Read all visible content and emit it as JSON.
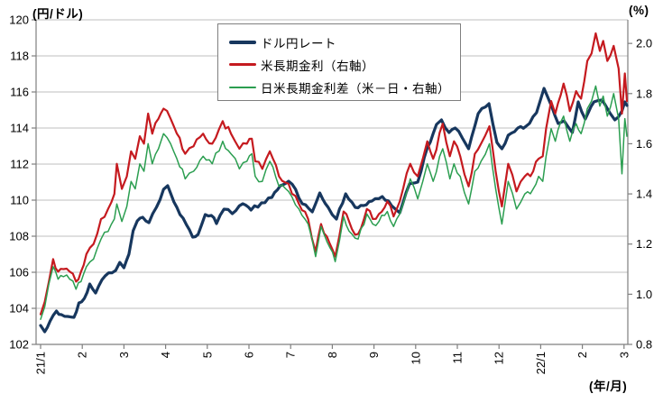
{
  "page_background": "#ffffff",
  "axis_color": "#7f7f7f",
  "grid_color": "#bfbfbf",
  "text_color": "#000000",
  "labels": {
    "left_axis_unit": "(円/ドル)",
    "right_axis_unit": "(%)",
    "x_axis_unit": "(年/月)"
  },
  "chart_data": {
    "type": "line",
    "title": "",
    "grid": "horizontal",
    "legend_position": "top-center",
    "x_axis": {
      "label": "(年/月)",
      "tick_labels": [
        "21/1",
        "2",
        "3",
        "4",
        "5",
        "6",
        "7",
        "8",
        "9",
        "10",
        "11",
        "12",
        "22/1",
        "2",
        "3"
      ],
      "range_months": [
        0,
        14.07
      ]
    },
    "y_left": {
      "label": "(円/ドル)",
      "min": 102,
      "max": 120,
      "step": 2,
      "tick_labels": [
        "120",
        "118",
        "116",
        "114",
        "112",
        "110",
        "108",
        "106",
        "104",
        "102"
      ]
    },
    "y_right": {
      "label": "(%)",
      "min": 0.8,
      "max": 2.094,
      "step": 0.2,
      "tick_labels": [
        "2.0",
        "1.8",
        "1.6",
        "1.4",
        "1.2",
        "1.0",
        "0.8"
      ]
    },
    "series": [
      {
        "name": "ドル円レート",
        "axis": "left",
        "color": "#17375e",
        "width": 3.2,
        "points": [
          [
            0,
            103.05
          ],
          [
            0.1,
            102.7
          ],
          [
            0.23,
            103.3
          ],
          [
            0.38,
            103.85
          ],
          [
            0.5,
            103.65
          ],
          [
            0.65,
            103.55
          ],
          [
            0.8,
            103.5
          ],
          [
            0.92,
            104.3
          ],
          [
            1.05,
            104.55
          ],
          [
            1.18,
            105.35
          ],
          [
            1.32,
            104.85
          ],
          [
            1.55,
            105.8
          ],
          [
            1.8,
            106.1
          ],
          [
            1.9,
            106.55
          ],
          [
            2,
            106.25
          ],
          [
            2.12,
            107
          ],
          [
            2.22,
            108.3
          ],
          [
            2.32,
            108.85
          ],
          [
            2.45,
            109.05
          ],
          [
            2.6,
            108.75
          ],
          [
            2.78,
            109.6
          ],
          [
            2.95,
            110.6
          ],
          [
            3.05,
            110.8
          ],
          [
            3.2,
            109.9
          ],
          [
            3.42,
            109
          ],
          [
            3.65,
            107.95
          ],
          [
            3.78,
            108.1
          ],
          [
            3.95,
            109.2
          ],
          [
            4.1,
            109.15
          ],
          [
            4.22,
            108.7
          ],
          [
            4.4,
            109.5
          ],
          [
            4.6,
            109.25
          ],
          [
            4.85,
            109.8
          ],
          [
            5.05,
            109.45
          ],
          [
            5.3,
            109.85
          ],
          [
            5.55,
            110.15
          ],
          [
            5.75,
            110.8
          ],
          [
            5.95,
            111.05
          ],
          [
            6.12,
            110.6
          ],
          [
            6.28,
            109.8
          ],
          [
            6.52,
            109.35
          ],
          [
            6.7,
            110.4
          ],
          [
            6.9,
            109.6
          ],
          [
            7.1,
            108.95
          ],
          [
            7.32,
            110.35
          ],
          [
            7.55,
            109.6
          ],
          [
            7.75,
            109.7
          ],
          [
            7.95,
            109.95
          ],
          [
            8.2,
            110.2
          ],
          [
            8.42,
            109.7
          ],
          [
            8.62,
            109.3
          ],
          [
            8.85,
            110.9
          ],
          [
            9.05,
            111
          ],
          [
            9.28,
            112.9
          ],
          [
            9.5,
            114.2
          ],
          [
            9.62,
            114.45
          ],
          [
            9.8,
            113.75
          ],
          [
            9.95,
            114
          ],
          [
            10.12,
            113.45
          ],
          [
            10.27,
            112.85
          ],
          [
            10.5,
            114.8
          ],
          [
            10.76,
            115.35
          ],
          [
            10.95,
            113.2
          ],
          [
            11.07,
            112.85
          ],
          [
            11.22,
            113.6
          ],
          [
            11.45,
            114
          ],
          [
            11.65,
            114.1
          ],
          [
            11.9,
            114.85
          ],
          [
            12.08,
            116.2
          ],
          [
            12.2,
            115.55
          ],
          [
            12.42,
            114.25
          ],
          [
            12.56,
            114.4
          ],
          [
            12.76,
            113.75
          ],
          [
            12.9,
            115.45
          ],
          [
            13.07,
            114.5
          ],
          [
            13.28,
            115.45
          ],
          [
            13.46,
            115.55
          ],
          [
            13.67,
            114.8
          ],
          [
            13.78,
            114.45
          ],
          [
            13.95,
            114.95
          ],
          [
            14.02,
            115.45
          ],
          [
            14.07,
            115.25
          ]
        ]
      },
      {
        "name": "米長期金利（右軸）",
        "axis": "right",
        "color": "#c51a1f",
        "width": 2.2,
        "points": [
          [
            0,
            0.92
          ],
          [
            0.1,
            0.97
          ],
          [
            0.3,
            1.14
          ],
          [
            0.42,
            1.09
          ],
          [
            0.55,
            1.1
          ],
          [
            0.7,
            1.09
          ],
          [
            0.85,
            1.05
          ],
          [
            0.97,
            1.09
          ],
          [
            1.1,
            1.16
          ],
          [
            1.27,
            1.2
          ],
          [
            1.45,
            1.3
          ],
          [
            1.62,
            1.34
          ],
          [
            1.77,
            1.4
          ],
          [
            1.83,
            1.52
          ],
          [
            1.95,
            1.42
          ],
          [
            2.07,
            1.47
          ],
          [
            2.17,
            1.57
          ],
          [
            2.27,
            1.54
          ],
          [
            2.38,
            1.63
          ],
          [
            2.48,
            1.6
          ],
          [
            2.58,
            1.72
          ],
          [
            2.68,
            1.64
          ],
          [
            2.83,
            1.7
          ],
          [
            2.95,
            1.74
          ],
          [
            3.12,
            1.7
          ],
          [
            3.27,
            1.64
          ],
          [
            3.47,
            1.56
          ],
          [
            3.67,
            1.59
          ],
          [
            3.9,
            1.64
          ],
          [
            4.12,
            1.6
          ],
          [
            4.37,
            1.69
          ],
          [
            4.57,
            1.64
          ],
          [
            4.77,
            1.58
          ],
          [
            4.95,
            1.6
          ],
          [
            5.07,
            1.62
          ],
          [
            5.15,
            1.53
          ],
          [
            5.32,
            1.5
          ],
          [
            5.5,
            1.57
          ],
          [
            5.72,
            1.47
          ],
          [
            5.95,
            1.44
          ],
          [
            6.2,
            1.36
          ],
          [
            6.42,
            1.3
          ],
          [
            6.6,
            1.17
          ],
          [
            6.73,
            1.28
          ],
          [
            6.87,
            1.23
          ],
          [
            7.07,
            1.15
          ],
          [
            7.27,
            1.33
          ],
          [
            7.47,
            1.26
          ],
          [
            7.62,
            1.24
          ],
          [
            7.83,
            1.34
          ],
          [
            7.97,
            1.3
          ],
          [
            8.12,
            1.32
          ],
          [
            8.32,
            1.37
          ],
          [
            8.47,
            1.31
          ],
          [
            8.62,
            1.37
          ],
          [
            8.87,
            1.52
          ],
          [
            9.05,
            1.47
          ],
          [
            9.17,
            1.54
          ],
          [
            9.28,
            1.61
          ],
          [
            9.42,
            1.54
          ],
          [
            9.65,
            1.68
          ],
          [
            9.82,
            1.55
          ],
          [
            9.92,
            1.61
          ],
          [
            10.07,
            1.55
          ],
          [
            10.27,
            1.43
          ],
          [
            10.42,
            1.56
          ],
          [
            10.57,
            1.6
          ],
          [
            10.77,
            1.67
          ],
          [
            10.92,
            1.49
          ],
          [
            11.07,
            1.35
          ],
          [
            11.22,
            1.52
          ],
          [
            11.42,
            1.41
          ],
          [
            11.62,
            1.47
          ],
          [
            11.82,
            1.49
          ],
          [
            11.95,
            1.54
          ],
          [
            12.05,
            1.55
          ],
          [
            12.13,
            1.66
          ],
          [
            12.25,
            1.77
          ],
          [
            12.35,
            1.72
          ],
          [
            12.55,
            1.84
          ],
          [
            12.7,
            1.73
          ],
          [
            12.85,
            1.81
          ],
          [
            12.97,
            1.78
          ],
          [
            13.12,
            1.93
          ],
          [
            13.22,
            1.96
          ],
          [
            13.32,
            2.04
          ],
          [
            13.42,
            1.97
          ],
          [
            13.5,
            2.01
          ],
          [
            13.6,
            1.93
          ],
          [
            13.75,
            1.99
          ],
          [
            13.87,
            1.9
          ],
          [
            13.95,
            1.72
          ],
          [
            14.02,
            1.88
          ],
          [
            14.07,
            1.77
          ]
        ]
      },
      {
        "name": "日米長期金利差（米－日・右軸）",
        "axis": "right",
        "color": "#2b9e50",
        "width": 1.5,
        "points": [
          [
            0,
            0.9
          ],
          [
            0.1,
            0.95
          ],
          [
            0.3,
            1.11
          ],
          [
            0.42,
            1.06
          ],
          [
            0.55,
            1.07
          ],
          [
            0.7,
            1.06
          ],
          [
            0.85,
            1.02
          ],
          [
            0.97,
            1.05
          ],
          [
            1.1,
            1.11
          ],
          [
            1.27,
            1.14
          ],
          [
            1.45,
            1.22
          ],
          [
            1.62,
            1.25
          ],
          [
            1.77,
            1.3
          ],
          [
            1.83,
            1.36
          ],
          [
            1.95,
            1.29
          ],
          [
            2.07,
            1.35
          ],
          [
            2.17,
            1.45
          ],
          [
            2.27,
            1.42
          ],
          [
            2.38,
            1.52
          ],
          [
            2.48,
            1.49
          ],
          [
            2.58,
            1.6
          ],
          [
            2.68,
            1.52
          ],
          [
            2.83,
            1.58
          ],
          [
            2.95,
            1.64
          ],
          [
            3.12,
            1.6
          ],
          [
            3.27,
            1.54
          ],
          [
            3.47,
            1.46
          ],
          [
            3.67,
            1.49
          ],
          [
            3.9,
            1.55
          ],
          [
            4.12,
            1.52
          ],
          [
            4.37,
            1.61
          ],
          [
            4.57,
            1.56
          ],
          [
            4.77,
            1.5
          ],
          [
            4.95,
            1.53
          ],
          [
            5.07,
            1.56
          ],
          [
            5.15,
            1.47
          ],
          [
            5.32,
            1.45
          ],
          [
            5.5,
            1.53
          ],
          [
            5.72,
            1.43
          ],
          [
            5.95,
            1.41
          ],
          [
            6.2,
            1.34
          ],
          [
            6.42,
            1.28
          ],
          [
            6.6,
            1.15
          ],
          [
            6.73,
            1.27
          ],
          [
            6.87,
            1.21
          ],
          [
            7.07,
            1.13
          ],
          [
            7.27,
            1.31
          ],
          [
            7.47,
            1.24
          ],
          [
            7.62,
            1.22
          ],
          [
            7.83,
            1.32
          ],
          [
            7.97,
            1.28
          ],
          [
            8.12,
            1.29
          ],
          [
            8.32,
            1.33
          ],
          [
            8.47,
            1.27
          ],
          [
            8.62,
            1.32
          ],
          [
            8.87,
            1.46
          ],
          [
            9.05,
            1.38
          ],
          [
            9.17,
            1.45
          ],
          [
            9.28,
            1.52
          ],
          [
            9.42,
            1.45
          ],
          [
            9.65,
            1.58
          ],
          [
            9.82,
            1.46
          ],
          [
            9.92,
            1.52
          ],
          [
            10.07,
            1.47
          ],
          [
            10.27,
            1.36
          ],
          [
            10.42,
            1.49
          ],
          [
            10.57,
            1.53
          ],
          [
            10.77,
            1.6
          ],
          [
            10.92,
            1.42
          ],
          [
            11.07,
            1.28
          ],
          [
            11.22,
            1.45
          ],
          [
            11.42,
            1.34
          ],
          [
            11.62,
            1.4
          ],
          [
            11.82,
            1.42
          ],
          [
            11.95,
            1.47
          ],
          [
            12.05,
            1.45
          ],
          [
            12.13,
            1.55
          ],
          [
            12.25,
            1.66
          ],
          [
            12.35,
            1.61
          ],
          [
            12.55,
            1.71
          ],
          [
            12.7,
            1.61
          ],
          [
            12.85,
            1.68
          ],
          [
            12.97,
            1.64
          ],
          [
            13.12,
            1.74
          ],
          [
            13.22,
            1.77
          ],
          [
            13.32,
            1.83
          ],
          [
            13.42,
            1.75
          ],
          [
            13.5,
            1.79
          ],
          [
            13.6,
            1.71
          ],
          [
            13.75,
            1.8
          ],
          [
            13.87,
            1.7
          ],
          [
            13.95,
            1.48
          ],
          [
            14.02,
            1.7
          ],
          [
            14.07,
            1.63
          ]
        ]
      }
    ]
  }
}
